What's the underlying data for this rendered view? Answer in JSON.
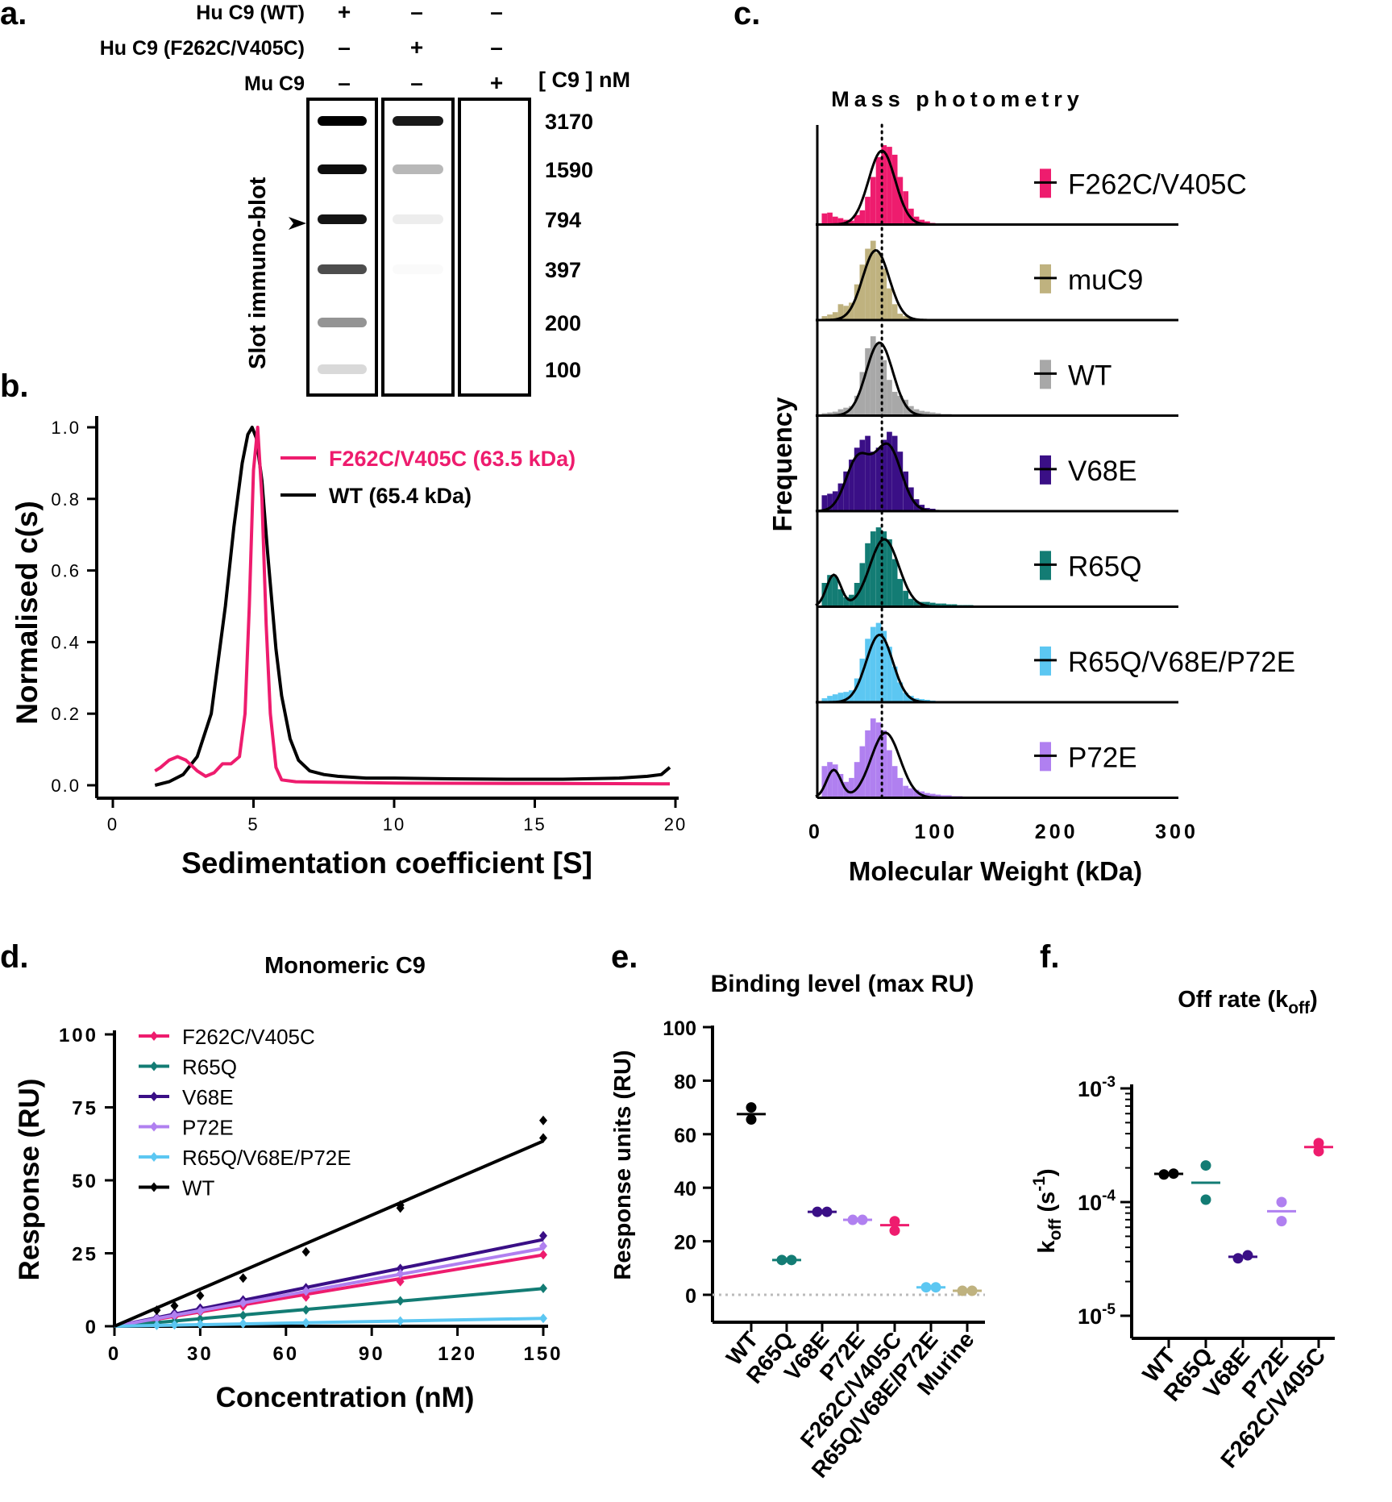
{
  "colors": {
    "WT": "#000000",
    "F262C/V405C": "#ee1c6e",
    "muC9": "#bfb27f",
    "WT_hist": "#a8a8a8",
    "V68E": "#3a0f86",
    "R65Q": "#137c74",
    "R65Q/V68E/P72E": "#5cc7f2",
    "P72E": "#b080f0"
  },
  "panel_a": {
    "letter": "a.",
    "rows": [
      {
        "label": "Hu C9 (WT)",
        "marks": [
          "+",
          "–",
          "–"
        ]
      },
      {
        "label": "Hu C9 (F262C/V405C)",
        "marks": [
          "–",
          "+",
          "–"
        ]
      },
      {
        "label": "Mu C9",
        "marks": [
          "–",
          "–",
          "+"
        ]
      }
    ],
    "conc_header": "[ C9 ] nM",
    "ylabel": "Slot immuno-blot",
    "concentrations": [
      "3170",
      "1590",
      "794",
      "397",
      "200",
      "100"
    ],
    "band_intensity": {
      "WT": [
        1.0,
        0.95,
        0.92,
        0.7,
        0.42,
        0.15
      ],
      "F262C/V405C": [
        0.9,
        0.28,
        0.07,
        0.02,
        0.0,
        0.0
      ],
      "Mu": [
        0.0,
        0.0,
        0.0,
        0.0,
        0.0,
        0.0
      ]
    }
  },
  "chart_data": [
    {
      "id": "b",
      "letter": "b.",
      "type": "line",
      "title": "",
      "xlabel": "Sedimentation coefficient [S]",
      "ylabel": "Normalised c(s)",
      "xlim": [
        0,
        20
      ],
      "ylim": [
        0,
        1
      ],
      "xticks": [
        0,
        5,
        10,
        15,
        20
      ],
      "yticks": [
        0.0,
        0.2,
        0.4,
        0.6,
        0.8,
        1.0
      ],
      "xtick_labels": [
        "0",
        "5",
        "10",
        "15",
        "20"
      ],
      "ytick_labels": [
        "0.0",
        "0.2",
        "0.4",
        "0.6",
        "0.8",
        "1.0"
      ],
      "series": [
        {
          "name": "F262C/V405C (63.5 kDa)",
          "key": "F262C/V405C",
          "x": [
            1.5,
            1.7,
            2.0,
            2.3,
            2.6,
            3.0,
            3.3,
            3.6,
            3.9,
            4.2,
            4.5,
            4.7,
            4.85,
            5.0,
            5.15,
            5.3,
            5.45,
            5.6,
            5.8,
            6.0,
            6.5,
            8,
            10,
            15,
            19.5,
            19.8
          ],
          "y": [
            0.04,
            0.05,
            0.07,
            0.08,
            0.07,
            0.04,
            0.025,
            0.035,
            0.06,
            0.06,
            0.08,
            0.2,
            0.5,
            0.88,
            1.0,
            0.8,
            0.45,
            0.2,
            0.05,
            0.015,
            0.01,
            0.008,
            0.006,
            0.005,
            0.004,
            0.004
          ]
        },
        {
          "name": "WT (65.4 kDa)",
          "key": "WT",
          "x": [
            1.5,
            2.0,
            2.5,
            3.0,
            3.5,
            4.0,
            4.3,
            4.6,
            4.8,
            4.95,
            5.1,
            5.3,
            5.5,
            5.8,
            6.0,
            6.3,
            6.6,
            7.0,
            7.5,
            8.0,
            9.0,
            10,
            12,
            14,
            16,
            18,
            19.0,
            19.5,
            19.8
          ],
          "y": [
            0.0,
            0.01,
            0.03,
            0.08,
            0.2,
            0.5,
            0.72,
            0.9,
            0.98,
            1.0,
            0.97,
            0.85,
            0.65,
            0.38,
            0.25,
            0.13,
            0.07,
            0.04,
            0.03,
            0.025,
            0.02,
            0.02,
            0.018,
            0.017,
            0.017,
            0.02,
            0.025,
            0.03,
            0.05
          ]
        }
      ]
    },
    {
      "id": "c",
      "letter": "c.",
      "type": "histogram-stack",
      "title": "Mass photometry",
      "xlabel": "Molecular Weight (kDa)",
      "ylabel": "Frequency",
      "xlim": [
        0,
        300
      ],
      "xticks": [
        0,
        100,
        200,
        300
      ],
      "xtick_labels": [
        "0",
        "100",
        "200",
        "300"
      ],
      "dotted_line_x": 55,
      "rows": [
        {
          "name": "F262C/V405C",
          "key": "F262C/V405C",
          "hist_start": 5,
          "bin": 4.5,
          "hist": [
            0.14,
            0.15,
            0.1,
            0.08,
            0.06,
            0.05,
            0.12,
            0.18,
            0.35,
            0.6,
            0.85,
            1.0,
            0.98,
            0.88,
            0.6,
            0.42,
            0.2,
            0.1,
            0.06,
            0.04,
            0.02
          ],
          "fit": [
            [
              55,
              0.93,
              11
            ]
          ]
        },
        {
          "name": "muC9",
          "key": "muC9",
          "hist_start": 5,
          "bin": 4.5,
          "hist": [
            0.05,
            0.07,
            0.1,
            0.2,
            0.18,
            0.22,
            0.45,
            0.7,
            0.9,
            1.0,
            0.85,
            0.65,
            0.4,
            0.2,
            0.08,
            0.05,
            0.03,
            0.02
          ],
          "fit": [
            [
              50,
              0.88,
              11
            ]
          ]
        },
        {
          "name": "WT",
          "key": "WT_hist",
          "hist_start": 5,
          "bin": 4.5,
          "hist": [
            0.03,
            0.04,
            0.05,
            0.08,
            0.1,
            0.12,
            0.25,
            0.55,
            0.85,
            1.0,
            0.9,
            0.7,
            0.45,
            0.3,
            0.25,
            0.2,
            0.12,
            0.08,
            0.06,
            0.05,
            0.04,
            0.03,
            0.02,
            0.02
          ],
          "fit": [
            [
              53,
              0.92,
              11
            ]
          ]
        },
        {
          "name": "V68E",
          "key": "V68E",
          "hist_start": 5,
          "bin": 4.5,
          "hist": [
            0.2,
            0.22,
            0.25,
            0.35,
            0.5,
            0.65,
            0.8,
            0.9,
            0.95,
            0.75,
            0.8,
            0.9,
            1.0,
            0.95,
            0.75,
            0.5,
            0.3,
            0.15,
            0.08,
            0.04,
            0.03
          ],
          "fit": [
            [
              35,
              0.65,
              10
            ],
            [
              60,
              0.82,
              11
            ]
          ]
        },
        {
          "name": "R65Q",
          "key": "R65Q",
          "hist_start": 5,
          "bin": 4.5,
          "hist": [
            0.3,
            0.4,
            0.38,
            0.22,
            0.12,
            0.15,
            0.3,
            0.55,
            0.8,
            0.95,
            1.0,
            0.95,
            0.85,
            0.6,
            0.35,
            0.2,
            0.1,
            0.07,
            0.06,
            0.06,
            0.05,
            0.04,
            0.04,
            0.03,
            0.03,
            0.02,
            0.02,
            0.02
          ],
          "fit": [
            [
              15,
              0.4,
              6
            ],
            [
              57,
              0.85,
              12
            ]
          ]
        },
        {
          "name": "R65Q/V68E/P72E",
          "key": "R65Q/V68E/P72E",
          "hist_start": 5,
          "bin": 4.5,
          "hist": [
            0.05,
            0.08,
            0.1,
            0.12,
            0.13,
            0.15,
            0.3,
            0.55,
            0.8,
            0.95,
            1.0,
            0.9,
            0.7,
            0.45,
            0.25,
            0.12,
            0.08,
            0.05,
            0.04,
            0.03,
            0.02
          ],
          "fit": [
            [
              53,
              0.85,
              11
            ]
          ]
        },
        {
          "name": "P72E",
          "key": "P72E",
          "hist_start": 5,
          "bin": 4.5,
          "hist": [
            0.4,
            0.45,
            0.42,
            0.3,
            0.2,
            0.25,
            0.45,
            0.65,
            0.85,
            1.0,
            0.95,
            0.85,
            0.6,
            0.4,
            0.25,
            0.15,
            0.12,
            0.1,
            0.08,
            0.06,
            0.05,
            0.04,
            0.03,
            0.03,
            0.02,
            0.02
          ],
          "fit": [
            [
              15,
              0.35,
              6
            ],
            [
              58,
              0.82,
              12
            ]
          ]
        }
      ]
    },
    {
      "id": "d",
      "letter": "d.",
      "type": "scatter-line",
      "title": "Monomeric C9",
      "xlabel": "Concentration (nM)",
      "ylabel": "Response (RU)",
      "xlim": [
        0,
        150
      ],
      "ylim": [
        0,
        100
      ],
      "xticks": [
        0,
        30,
        60,
        90,
        120,
        150
      ],
      "yticks": [
        0,
        25,
        50,
        75,
        100
      ],
      "xtick_labels": [
        "0",
        "30",
        "60",
        "90",
        "120",
        "150"
      ],
      "ytick_labels": [
        "0",
        "25",
        "50",
        "75",
        "100"
      ],
      "x": [
        14.8,
        21,
        30,
        45,
        67,
        100,
        150
      ],
      "series": [
        {
          "name": "F262C/V405C",
          "key": "F262C/V405C",
          "slope": 0.163,
          "values": [
            2.2,
            3.2,
            4.8,
            6.9,
            10.0,
            15.3,
            24.5
          ]
        },
        {
          "name": "R65Q",
          "key": "R65Q",
          "slope": 0.086,
          "values": [
            1.0,
            1.6,
            2.5,
            3.7,
            5.6,
            8.7,
            13.0
          ]
        },
        {
          "name": "V68E",
          "key": "V68E",
          "slope": 0.198,
          "values": [
            3.0,
            4.5,
            6.2,
            9.0,
            13.2,
            19.8,
            31.0
          ]
        },
        {
          "name": "P72E",
          "key": "P72E",
          "slope": 0.178,
          "values": [
            2.7,
            3.8,
            5.2,
            8.0,
            12.0,
            18.0,
            27.5
          ]
        },
        {
          "name": "R65Q/V68E/P72E",
          "key": "R65Q/V68E/P72E",
          "slope": 0.018,
          "values": [
            0.3,
            0.5,
            0.7,
            0.9,
            1.2,
            1.8,
            2.7
          ]
        },
        {
          "name": "WT",
          "key": "WT",
          "slope": 0.423,
          "values": [
            5.5,
            7.0,
            10.5,
            16.5,
            25.5,
            41.5,
            70.5
          ],
          "extra": [
            [
              100,
              40.5
            ],
            [
              150,
              64.5
            ]
          ]
        }
      ]
    },
    {
      "id": "e",
      "letter": "e.",
      "type": "scatter",
      "title": "Binding level (max RU)",
      "ylabel": "Response units (RU)",
      "ylim": [
        0,
        100
      ],
      "yticks": [
        0,
        20,
        40,
        60,
        80,
        100
      ],
      "ytick_labels": [
        "0",
        "20",
        "40",
        "60",
        "80",
        "100"
      ],
      "categories": [
        "WT",
        "R65Q",
        "V68E",
        "P72E",
        "F262C/V405C",
        "R65Q/V68E/P72E",
        "Murine"
      ],
      "category_keys": [
        "WT",
        "R65Q",
        "V68E",
        "P72E",
        "F262C/V405C",
        "R65Q/V68E/P72E",
        "muC9"
      ],
      "points": [
        [
          70,
          65.5
        ],
        [
          13,
          13
        ],
        [
          31,
          31
        ],
        [
          28,
          28
        ],
        [
          27.5,
          24
        ],
        [
          2.8,
          2.8
        ],
        [
          1.5,
          1.5
        ]
      ],
      "means": [
        67.5,
        13,
        31,
        28,
        26,
        2.8,
        1.5
      ]
    },
    {
      "id": "f",
      "letter": "f.",
      "type": "scatter",
      "title": "Off rate (k",
      "title_sub": "off",
      "title_end": ")",
      "yscale": "log",
      "ylim": [
        1e-05,
        0.001
      ],
      "ytick_labels": [
        {
          "base": "10",
          "exp": "-3"
        },
        {
          "base": "10",
          "exp": "-4"
        },
        {
          "base": "10",
          "exp": "-5"
        }
      ],
      "ylabel_k": "k",
      "ylabel_sub": "off",
      "ylabel_mid": " (s",
      "ylabel_sup": "-1",
      "ylabel_end": ")",
      "categories": [
        "WT",
        "R65Q",
        "V68E",
        "P72E",
        "F262C/V405C"
      ],
      "category_keys": [
        "WT",
        "R65Q",
        "V68E",
        "P72E",
        "F262C/V405C"
      ],
      "points": [
        [
          0.000175,
          0.000178
        ],
        [
          0.00021,
          0.000105
        ],
        [
          3.2e-05,
          3.4e-05
        ],
        [
          0.0001,
          6.8e-05
        ],
        [
          0.00033,
          0.00028
        ]
      ],
      "means": [
        0.000177,
        0.000148,
        3.3e-05,
        8.3e-05,
        0.000305
      ]
    }
  ]
}
